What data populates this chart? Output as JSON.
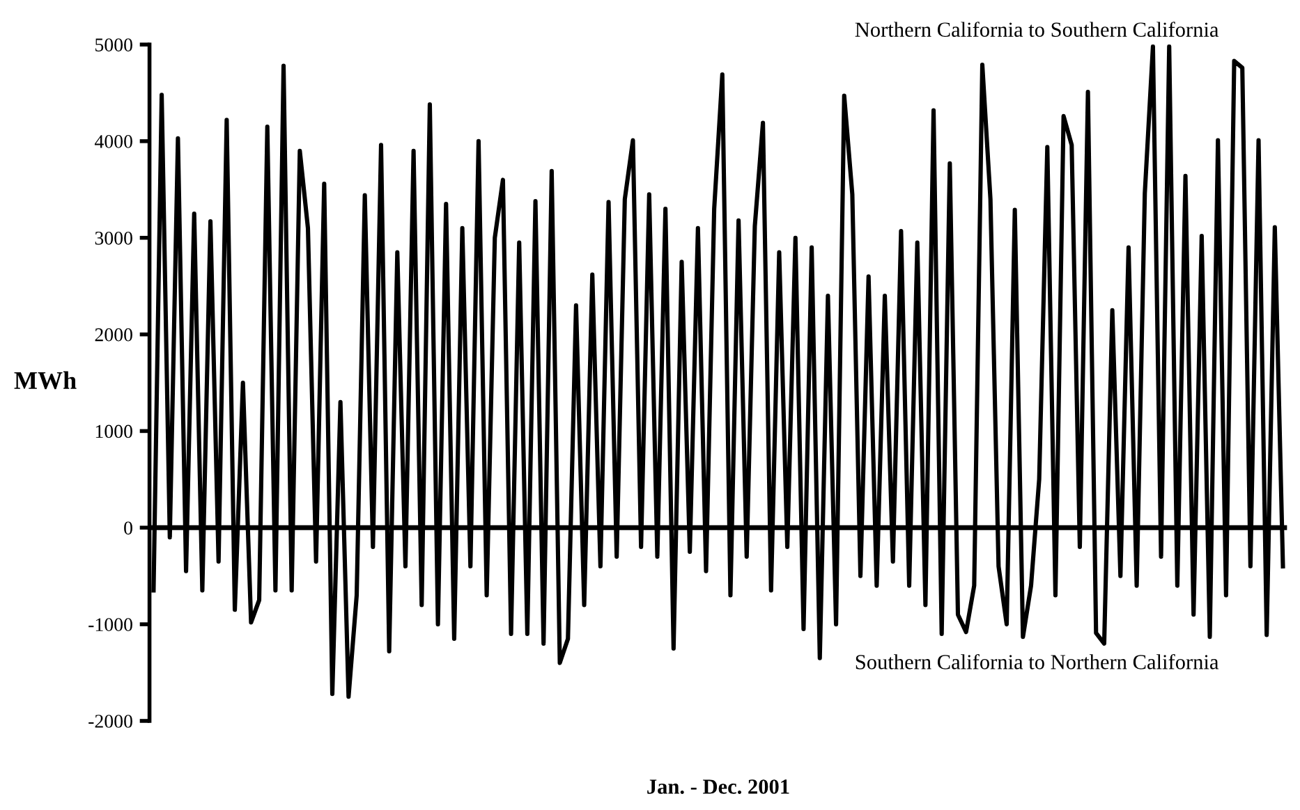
{
  "chart_data": {
    "type": "line",
    "xlabel": "Jan. - Dec. 2001",
    "ylabel": "MWh",
    "annotations": [
      "Northern California to Southern California",
      "Southern California to Northern California"
    ],
    "categories": [
      null,
      null,
      null,
      null,
      null,
      null,
      null,
      null,
      null,
      null,
      null,
      null,
      null,
      null,
      null,
      null,
      null,
      null,
      null,
      null,
      null,
      null,
      null,
      null,
      null,
      null,
      null,
      null,
      null,
      null,
      null,
      null,
      null,
      null,
      null,
      null,
      null,
      null,
      null,
      null,
      null,
      null,
      null,
      null,
      null,
      null,
      null,
      null,
      null,
      null,
      null,
      null,
      null,
      null,
      null,
      null,
      null,
      null,
      null,
      null,
      null,
      null,
      null,
      null,
      null,
      null,
      null,
      null,
      null,
      null,
      null,
      null,
      null,
      null,
      null,
      null,
      null,
      null,
      null,
      null,
      null,
      null,
      null,
      null,
      null,
      null,
      null,
      null,
      null,
      null,
      null,
      null,
      null,
      null,
      null,
      null,
      null,
      null,
      null,
      null,
      null,
      null,
      null,
      null,
      null,
      null,
      null,
      null,
      null,
      null,
      null,
      null,
      null,
      null,
      null,
      null,
      null,
      null,
      null,
      null,
      null,
      null,
      null,
      null,
      null,
      null,
      null,
      null,
      null,
      null,
      null,
      null,
      null,
      null,
      null,
      null,
      null,
      null,
      null,
      null
    ],
    "series": [
      {
        "color": "#000000",
        "values": [
          -650,
          4480,
          -100,
          4030,
          -450,
          3250,
          -650,
          3170,
          -350,
          4220,
          -850,
          1500,
          -980,
          -750,
          4150,
          -650,
          4780,
          -650,
          3900,
          3100,
          -350,
          3560,
          -1720,
          1300,
          -1750,
          -700,
          3440,
          -200,
          3960,
          -1280,
          2850,
          -400,
          3900,
          -800,
          4380,
          -1000,
          3350,
          -1150,
          3100,
          -400,
          4000,
          -700,
          3000,
          3600,
          -1100,
          2950,
          -1100,
          3380,
          -1200,
          3690,
          -1400,
          -1150,
          2300,
          -800,
          2620,
          -400,
          3370,
          -300,
          3400,
          4010,
          -200,
          3450,
          -300,
          3300,
          -1250,
          2750,
          -250,
          3100,
          -450,
          3300,
          4690,
          -700,
          3180,
          -300,
          3120,
          4190,
          -650,
          2850,
          -200,
          3000,
          -1050,
          2900,
          -1350,
          2400,
          -1000,
          4470,
          3450,
          -500,
          2600,
          -600,
          2400,
          -350,
          3070,
          -600,
          2950,
          -800,
          4320,
          -1100,
          3770,
          -900,
          -1080,
          -600,
          4790,
          3400,
          -400,
          -1000,
          3290,
          -1130,
          -600,
          500,
          3940,
          -700,
          4260,
          3960,
          -200,
          4510,
          -1090,
          -1200,
          2250,
          -500,
          2900,
          -600,
          3460,
          4980,
          -300,
          4980,
          -600,
          3640,
          -900,
          3020,
          -1130,
          4010,
          -700,
          4830,
          4760,
          -400,
          4010,
          -1110,
          3110,
          -400
        ]
      }
    ],
    "ylim": [
      -2000,
      5000
    ],
    "yticks": [
      -2000,
      -1000,
      0,
      1000,
      2000,
      3000,
      4000,
      5000
    ],
    "ref_lines": [
      {
        "axis": "y",
        "value": 0,
        "color": "#000000"
      }
    ],
    "tick_labels": "y",
    "grid": false,
    "legend": false,
    "marker": "none",
    "line_style": "solid"
  }
}
